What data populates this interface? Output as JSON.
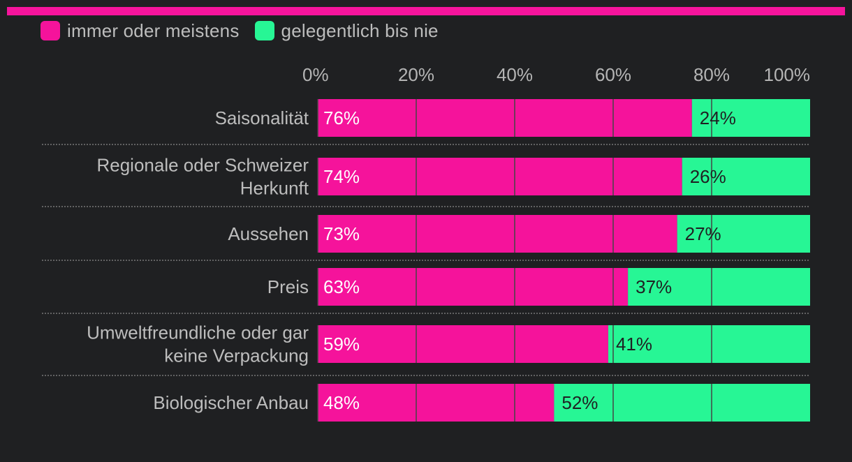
{
  "colors": {
    "background": "#1f2022",
    "accent": "#f5149c",
    "series_primary": "#f5139b",
    "series_secondary": "#27f695",
    "grid": "#454545",
    "separator": "#8a8a8a",
    "text": "#bdbdbd",
    "value_on_primary": "#ffffff",
    "value_on_secondary": "#1f2022"
  },
  "legend": {
    "items": [
      {
        "label": "immer oder meistens",
        "color": "#f5139b"
      },
      {
        "label": "gelegentlich bis nie",
        "color": "#27f695"
      }
    ]
  },
  "chart_data": {
    "type": "bar",
    "orientation": "horizontal",
    "stacked": true,
    "title": "",
    "xlabel": "",
    "ylabel": "",
    "xlim": [
      0,
      100
    ],
    "ticks": [
      0,
      20,
      40,
      60,
      80,
      100
    ],
    "tick_labels": [
      "0%",
      "20%",
      "40%",
      "60%",
      "80%",
      "100%"
    ],
    "axis_position": "top",
    "legend_position": "top-left",
    "grid": true,
    "categories": [
      [
        "Saisonalität"
      ],
      [
        "Regionale oder Schweizer",
        "Herkunft"
      ],
      [
        "Aussehen"
      ],
      [
        "Preis"
      ],
      [
        "Umweltfreundliche oder gar",
        "keine Verpackung"
      ],
      [
        "Biologischer Anbau"
      ]
    ],
    "series": [
      {
        "name": "immer oder meistens",
        "values": [
          76,
          74,
          73,
          63,
          59,
          48
        ],
        "labels": [
          "76%",
          "74%",
          "73%",
          "63%",
          "59%",
          "48%"
        ]
      },
      {
        "name": "gelegentlich bis nie",
        "values": [
          24,
          26,
          27,
          37,
          41,
          52
        ],
        "labels": [
          "24%",
          "26%",
          "27%",
          "37%",
          "41%",
          "52%"
        ]
      }
    ]
  }
}
